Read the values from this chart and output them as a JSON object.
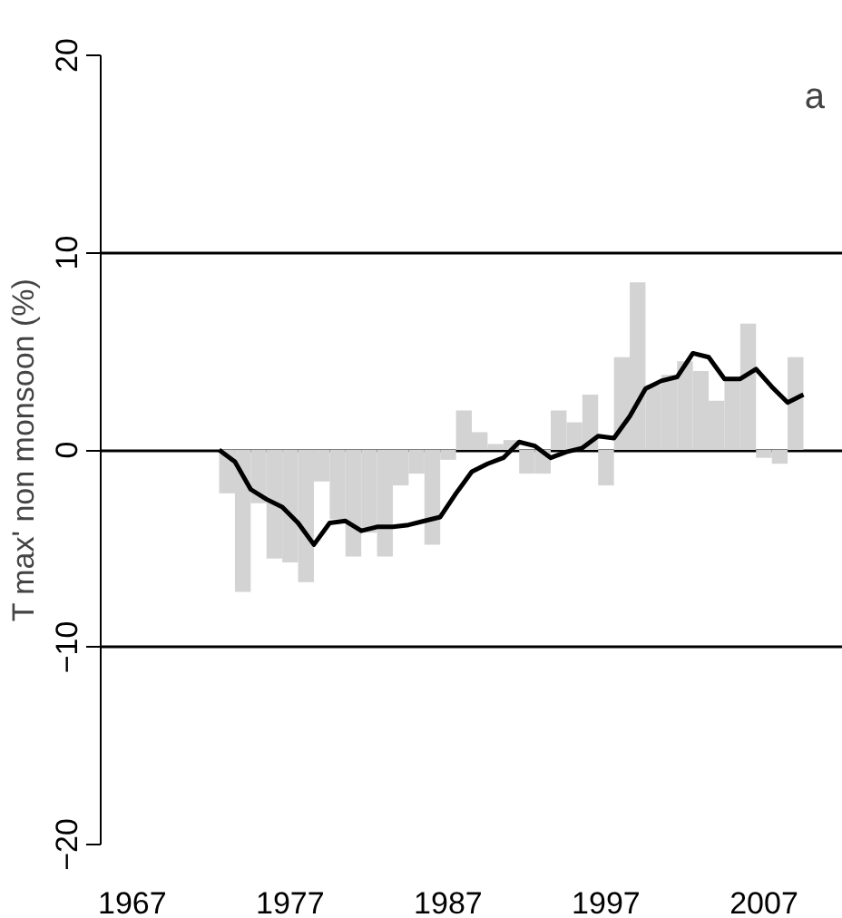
{
  "chart_data": {
    "type": "bar",
    "ylabel": "T max' non monsoon (%)",
    "annotations": [
      "a"
    ],
    "xlim": [
      1965,
      2012
    ],
    "xticks": [
      1967,
      1977,
      1987,
      1997,
      2007
    ],
    "ylim": [
      -20,
      20
    ],
    "yticks": [
      -20,
      -10,
      0,
      10,
      20
    ],
    "grid": "y",
    "series": [
      {
        "color": "#d3d3d3",
        "x": [
          1973,
          1974,
          1975,
          1976,
          1977,
          1978,
          1979,
          1980,
          1981,
          1982,
          1983,
          1984,
          1985,
          1986,
          1987,
          1988,
          1989,
          1990,
          1991,
          1992,
          1993,
          1994,
          1995,
          1996,
          1997,
          1998,
          1999,
          2000,
          2001,
          2002,
          2003,
          2004,
          2005,
          2006,
          2007,
          2008,
          2009
        ],
        "values": [
          -2.2,
          -7.2,
          -2.7,
          -5.5,
          -5.7,
          -6.7,
          -1.6,
          -3.5,
          -5.4,
          -4.2,
          -5.4,
          -1.8,
          -1.2,
          -4.8,
          -0.5,
          2.0,
          0.9,
          0.3,
          0.5,
          -1.2,
          -1.2,
          2.0,
          1.4,
          2.8,
          -1.8,
          4.7,
          8.5,
          3.3,
          3.8,
          4.5,
          4.0,
          2.5,
          3.7,
          6.4,
          -0.4,
          -0.7,
          4.7
        ]
      },
      {
        "type": "line",
        "color": "#000000",
        "x": [
          1972.5,
          1973.5,
          1974.5,
          1975.5,
          1976.5,
          1977.5,
          1978.5,
          1979.5,
          1980.5,
          1981.5,
          1982.5,
          1983.5,
          1984.5,
          1985.5,
          1986.5,
          1987.5,
          1988.5,
          1989.5,
          1990.5,
          1991.5,
          1992.5,
          1993.5,
          1994.5,
          1995.5,
          1996.5,
          1997.5,
          1998.5,
          1999.5,
          2000.5,
          2001.5,
          2002.5,
          2003.5,
          2004.5,
          2005.5,
          2006.5,
          2007.5,
          2008.5,
          2009.5
        ],
        "values": [
          0,
          -0.6,
          -2.0,
          -2.5,
          -2.9,
          -3.7,
          -4.8,
          -3.7,
          -3.6,
          -4.1,
          -3.9,
          -3.9,
          -3.8,
          -3.6,
          -3.4,
          -2.2,
          -1.1,
          -0.7,
          -0.4,
          0.4,
          0.2,
          -0.4,
          -0.1,
          0.1,
          0.7,
          0.6,
          1.7,
          3.1,
          3.5,
          3.7,
          4.9,
          4.7,
          3.6,
          3.6,
          4.1,
          3.2,
          2.4,
          2.8
        ]
      }
    ]
  }
}
